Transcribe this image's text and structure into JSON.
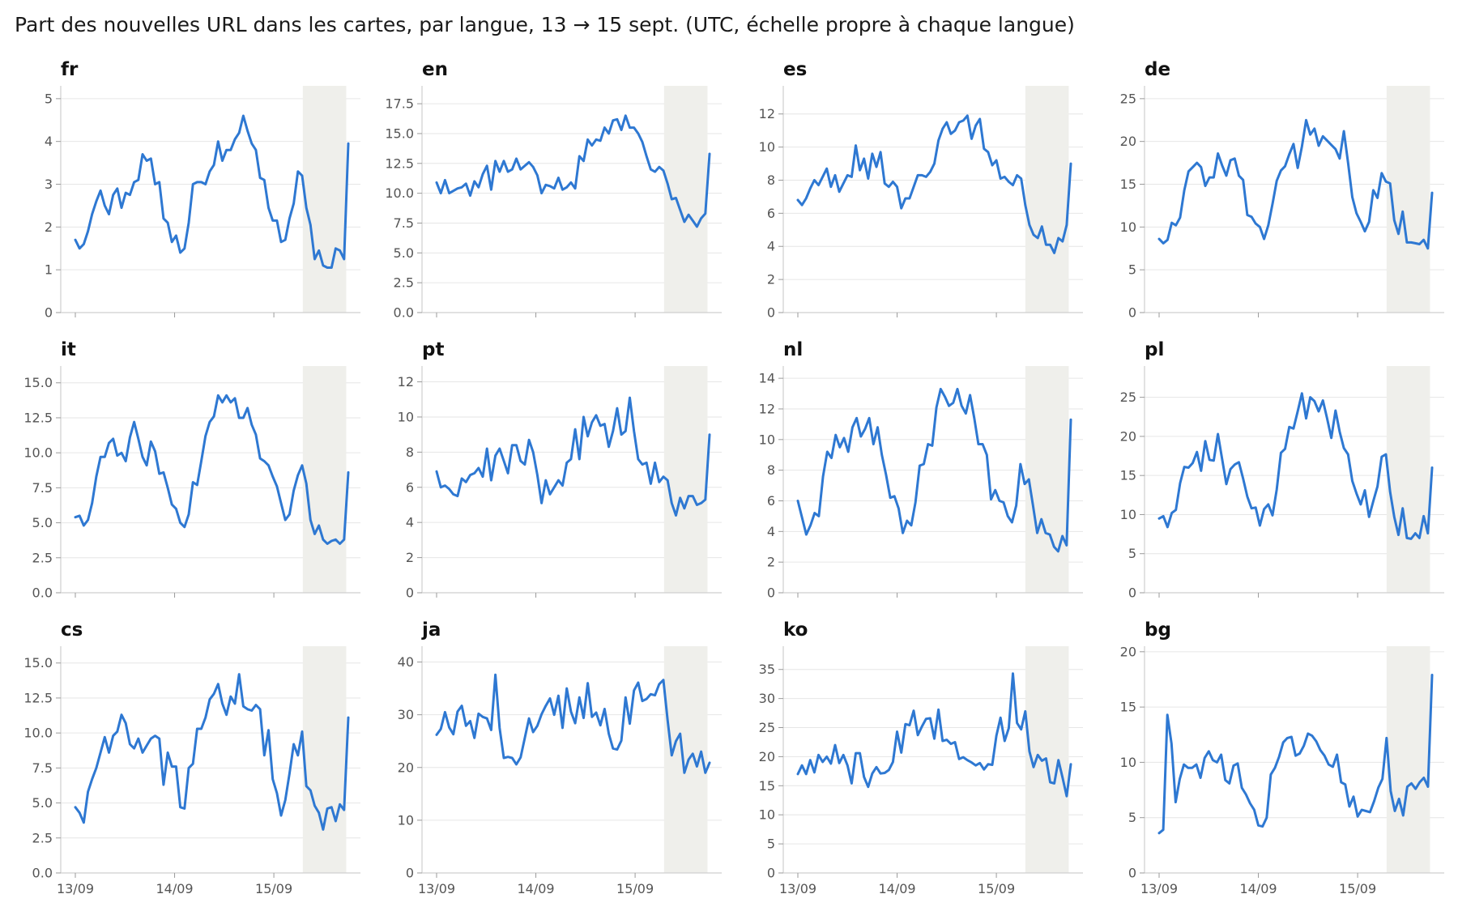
{
  "title": "Part des nouvelles URL dans les cartes, par langue, 13 → 15 sept. (UTC, échelle propre à chaque langue)",
  "colors": {
    "line": "#2e78d2",
    "band": "#efefeb",
    "grid": "#e6e6e6",
    "axis": "#cfcfcf"
  },
  "chart_data": {
    "type": "line",
    "layout": "grid-3x4",
    "x_unit": "hours since 13/09 00:00 UTC",
    "x_range": [
      0,
      66
    ],
    "x_ticks": [
      0,
      24,
      48
    ],
    "x_tick_labels": [
      "13/09",
      "14/09",
      "15/09"
    ],
    "shaded_x_range": [
      55,
      65.5
    ],
    "panels": [
      {
        "name": "fr",
        "ylim": [
          0,
          5.3
        ],
        "yticks": [
          "0",
          "1",
          "2",
          "3",
          "4",
          "5"
        ],
        "ytick_values": [
          0,
          1,
          2,
          3,
          4,
          5
        ],
        "values": [
          1.7,
          1.5,
          1.6,
          1.9,
          2.3,
          2.6,
          2.85,
          2.5,
          2.3,
          2.75,
          2.9,
          2.45,
          2.8,
          2.75,
          3.05,
          3.1,
          3.7,
          3.55,
          3.6,
          3.0,
          3.05,
          2.2,
          2.1,
          1.65,
          1.8,
          1.4,
          1.5,
          2.1,
          3.0,
          3.05,
          3.05,
          3.0,
          3.3,
          3.45,
          4.0,
          3.55,
          3.8,
          3.8,
          4.05,
          4.2,
          4.6,
          4.25,
          3.95,
          3.8,
          3.15,
          3.1,
          2.45,
          2.15,
          2.15,
          1.65,
          1.7,
          2.2,
          2.55,
          3.3,
          3.2,
          2.45,
          2.05,
          1.25,
          1.45,
          1.1,
          1.05,
          1.05,
          1.5,
          1.45,
          1.25,
          3.95
        ]
      },
      {
        "name": "en",
        "ylim": [
          0,
          19
        ],
        "yticks": [
          "0.0",
          "2.5",
          "5.0",
          "7.5",
          "10.0",
          "12.5",
          "15.0",
          "17.5"
        ],
        "ytick_values": [
          0,
          2.5,
          5,
          7.5,
          10,
          12.5,
          15,
          17.5
        ],
        "values": [
          10.9,
          10.0,
          11.1,
          10.0,
          10.2,
          10.4,
          10.5,
          10.8,
          9.8,
          11.0,
          10.5,
          11.6,
          12.3,
          10.3,
          12.7,
          11.8,
          12.7,
          11.8,
          12.0,
          12.9,
          12.0,
          12.3,
          12.6,
          12.2,
          11.5,
          10.0,
          10.7,
          10.6,
          10.4,
          11.3,
          10.3,
          10.5,
          10.9,
          10.4,
          13.1,
          12.7,
          14.5,
          14.0,
          14.5,
          14.4,
          15.5,
          15.0,
          16.1,
          16.2,
          15.3,
          16.5,
          15.5,
          15.5,
          15.0,
          14.3,
          13.1,
          12.0,
          11.8,
          12.2,
          11.9,
          10.8,
          9.5,
          9.6,
          8.6,
          7.6,
          8.2,
          7.7,
          7.2,
          7.9,
          8.3,
          13.3
        ]
      },
      {
        "name": "es",
        "ylim": [
          0,
          13.7
        ],
        "yticks": [
          "0",
          "2",
          "4",
          "6",
          "8",
          "10",
          "12"
        ],
        "ytick_values": [
          0,
          2,
          4,
          6,
          8,
          10,
          12
        ],
        "values": [
          6.8,
          6.5,
          6.9,
          7.5,
          8.0,
          7.7,
          8.2,
          8.7,
          7.6,
          8.3,
          7.3,
          7.8,
          8.3,
          8.2,
          10.1,
          8.6,
          9.3,
          8.1,
          9.6,
          8.8,
          9.7,
          7.8,
          7.6,
          7.9,
          7.6,
          6.3,
          6.9,
          6.9,
          7.6,
          8.3,
          8.3,
          8.2,
          8.5,
          9.0,
          10.4,
          11.1,
          11.5,
          10.8,
          11.0,
          11.5,
          11.6,
          11.9,
          10.5,
          11.3,
          11.7,
          9.9,
          9.7,
          8.9,
          9.2,
          8.1,
          8.2,
          7.9,
          7.7,
          8.3,
          8.1,
          6.5,
          5.3,
          4.7,
          4.5,
          5.2,
          4.1,
          4.1,
          3.6,
          4.5,
          4.3,
          5.3,
          9.0
        ]
      },
      {
        "name": "de",
        "ylim": [
          0,
          26.5
        ],
        "yticks": [
          "0",
          "5",
          "10",
          "15",
          "20",
          "25"
        ],
        "ytick_values": [
          0,
          5,
          10,
          15,
          20,
          25
        ],
        "values": [
          8.6,
          8.1,
          8.5,
          10.5,
          10.2,
          11.1,
          14.3,
          16.5,
          17.0,
          17.5,
          17.0,
          14.8,
          15.8,
          15.8,
          18.6,
          17.2,
          16.0,
          17.8,
          18.0,
          16.0,
          15.5,
          11.4,
          11.2,
          10.4,
          10.0,
          8.6,
          10.2,
          12.7,
          15.4,
          16.6,
          17.1,
          18.5,
          19.7,
          16.9,
          19.4,
          22.5,
          20.8,
          21.5,
          19.5,
          20.6,
          20.1,
          19.6,
          19.1,
          18.0,
          21.2,
          17.5,
          13.5,
          11.6,
          10.6,
          9.5,
          10.6,
          14.3,
          13.4,
          16.3,
          15.3,
          15.1,
          10.8,
          9.2,
          11.8,
          8.2,
          8.2,
          8.1,
          8.0,
          8.5,
          7.5,
          14.0
        ]
      },
      {
        "name": "it",
        "ylim": [
          0,
          16.2
        ],
        "yticks": [
          "0.0",
          "2.5",
          "5.0",
          "7.5",
          "10.0",
          "12.5",
          "15.0"
        ],
        "ytick_values": [
          0,
          2.5,
          5,
          7.5,
          10,
          12.5,
          15
        ],
        "values": [
          5.4,
          5.5,
          4.8,
          5.2,
          6.4,
          8.3,
          9.7,
          9.7,
          10.7,
          11.0,
          9.8,
          10.0,
          9.4,
          11.1,
          12.2,
          11.0,
          9.7,
          9.1,
          10.8,
          10.1,
          8.5,
          8.6,
          7.5,
          6.3,
          6.0,
          5.0,
          4.7,
          5.6,
          7.9,
          7.7,
          9.4,
          11.2,
          12.2,
          12.6,
          14.1,
          13.6,
          14.1,
          13.6,
          13.9,
          12.5,
          12.5,
          13.2,
          12.0,
          11.3,
          9.6,
          9.4,
          9.1,
          8.3,
          7.6,
          6.4,
          5.2,
          5.6,
          7.3,
          8.4,
          9.1,
          7.8,
          5.2,
          4.2,
          4.8,
          3.8,
          3.5,
          3.7,
          3.8,
          3.5,
          3.8,
          8.6
        ]
      },
      {
        "name": "pt",
        "ylim": [
          0,
          12.9
        ],
        "yticks": [
          "0",
          "2",
          "4",
          "6",
          "8",
          "10",
          "12"
        ],
        "ytick_values": [
          0,
          2,
          4,
          6,
          8,
          10,
          12
        ],
        "values": [
          6.9,
          6.0,
          6.1,
          5.9,
          5.6,
          5.5,
          6.5,
          6.3,
          6.7,
          6.8,
          7.1,
          6.6,
          8.2,
          6.4,
          7.8,
          8.2,
          7.5,
          6.8,
          8.4,
          8.4,
          7.5,
          7.3,
          8.7,
          8.0,
          6.7,
          5.1,
          6.4,
          5.6,
          6.0,
          6.4,
          6.1,
          7.4,
          7.6,
          9.3,
          7.6,
          10.0,
          8.9,
          9.7,
          10.1,
          9.5,
          9.6,
          8.3,
          9.2,
          10.5,
          9.0,
          9.2,
          11.1,
          9.2,
          7.6,
          7.3,
          7.4,
          6.2,
          7.4,
          6.3,
          6.6,
          6.4,
          5.1,
          4.4,
          5.4,
          4.8,
          5.5,
          5.5,
          5.0,
          5.1,
          5.3,
          9.0
        ]
      },
      {
        "name": "nl",
        "ylim": [
          0,
          14.8
        ],
        "yticks": [
          "0",
          "2",
          "4",
          "6",
          "8",
          "10",
          "12",
          "14"
        ],
        "ytick_values": [
          0,
          2,
          4,
          6,
          8,
          10,
          12,
          14
        ],
        "values": [
          6.0,
          4.9,
          3.8,
          4.4,
          5.2,
          5.0,
          7.6,
          9.2,
          8.8,
          10.3,
          9.5,
          10.1,
          9.2,
          10.8,
          11.4,
          10.2,
          10.7,
          11.4,
          9.7,
          10.8,
          9.0,
          7.7,
          6.2,
          6.3,
          5.5,
          3.9,
          4.7,
          4.4,
          5.9,
          8.3,
          8.4,
          9.7,
          9.6,
          12.1,
          13.3,
          12.8,
          12.2,
          12.4,
          13.3,
          12.2,
          11.7,
          12.9,
          11.4,
          9.7,
          9.7,
          9.0,
          6.1,
          6.7,
          6.0,
          5.9,
          5.0,
          4.6,
          5.7,
          8.4,
          7.1,
          7.4,
          5.7,
          3.9,
          4.8,
          3.9,
          3.8,
          3.0,
          2.7,
          3.7,
          3.1,
          11.3
        ]
      },
      {
        "name": "pl",
        "ylim": [
          0,
          29
        ],
        "yticks": [
          "0",
          "5",
          "10",
          "15",
          "20",
          "25"
        ],
        "ytick_values": [
          0,
          5,
          10,
          15,
          20,
          25
        ],
        "values": [
          9.5,
          9.8,
          8.4,
          10.2,
          10.6,
          14.0,
          16.1,
          16.0,
          16.6,
          18.0,
          15.6,
          19.4,
          17.0,
          16.9,
          20.3,
          17.1,
          13.9,
          15.8,
          16.4,
          16.7,
          14.6,
          12.3,
          10.8,
          10.9,
          8.6,
          10.7,
          11.3,
          9.9,
          13.2,
          17.9,
          18.4,
          21.2,
          21.0,
          23.2,
          25.5,
          22.3,
          25.0,
          24.5,
          23.2,
          24.6,
          22.3,
          19.8,
          23.3,
          20.6,
          18.5,
          17.7,
          14.3,
          12.7,
          11.3,
          13.1,
          9.7,
          11.7,
          13.6,
          17.4,
          17.7,
          12.9,
          9.7,
          7.4,
          10.8,
          7.0,
          6.9,
          7.6,
          7.0,
          9.8,
          7.6,
          16.0
        ]
      },
      {
        "name": "cs",
        "ylim": [
          0,
          16.2
        ],
        "yticks": [
          "0.0",
          "2.5",
          "5.0",
          "7.5",
          "10.0",
          "12.5",
          "15.0"
        ],
        "ytick_values": [
          0,
          2.5,
          5,
          7.5,
          10,
          12.5,
          15
        ],
        "values": [
          4.7,
          4.3,
          3.6,
          5.8,
          6.7,
          7.5,
          8.6,
          9.7,
          8.6,
          9.8,
          10.1,
          11.3,
          10.7,
          9.2,
          8.9,
          9.6,
          8.6,
          9.1,
          9.6,
          9.8,
          9.6,
          6.3,
          8.6,
          7.6,
          7.6,
          4.7,
          4.6,
          7.5,
          7.8,
          10.3,
          10.3,
          11.1,
          12.4,
          12.8,
          13.5,
          12.1,
          11.3,
          12.6,
          12.1,
          14.2,
          11.9,
          11.7,
          11.6,
          12.0,
          11.7,
          8.4,
          10.2,
          6.7,
          5.7,
          4.1,
          5.2,
          7.1,
          9.2,
          8.4,
          10.1,
          6.2,
          5.9,
          4.8,
          4.3,
          3.1,
          4.6,
          4.7,
          3.7,
          4.9,
          4.5,
          11.1
        ]
      },
      {
        "name": "ja",
        "ylim": [
          0,
          43
        ],
        "yticks": [
          "0",
          "10",
          "20",
          "30",
          "40"
        ],
        "ytick_values": [
          0,
          10,
          20,
          30,
          40
        ],
        "values": [
          26.2,
          27.3,
          30.5,
          27.6,
          26.3,
          30.6,
          31.7,
          27.9,
          28.8,
          25.6,
          30.2,
          29.6,
          29.3,
          27.1,
          37.6,
          27.5,
          21.8,
          22.0,
          21.8,
          20.6,
          21.9,
          25.6,
          29.3,
          26.7,
          27.9,
          30.1,
          31.7,
          33.1,
          30.0,
          33.6,
          27.5,
          35.0,
          30.6,
          28.4,
          33.3,
          29.4,
          36.0,
          29.6,
          30.4,
          28.0,
          31.1,
          26.4,
          23.6,
          23.4,
          25.1,
          33.3,
          28.3,
          34.6,
          36.1,
          32.6,
          33.0,
          33.9,
          33.7,
          35.8,
          36.6,
          29.0,
          22.3,
          25.0,
          26.4,
          19.0,
          21.5,
          22.6,
          20.2,
          23.0,
          19.0,
          20.9
        ]
      },
      {
        "name": "ko",
        "ylim": [
          0,
          39
        ],
        "yticks": [
          "0",
          "5",
          "10",
          "15",
          "20",
          "25",
          "30",
          "35"
        ],
        "ytick_values": [
          0,
          5,
          10,
          15,
          20,
          25,
          30,
          35
        ],
        "values": [
          17.0,
          18.5,
          17.0,
          19.4,
          17.3,
          20.3,
          19.1,
          20.0,
          18.8,
          22.0,
          18.9,
          20.3,
          18.5,
          15.4,
          20.6,
          20.6,
          16.5,
          14.8,
          17.1,
          18.2,
          17.1,
          17.2,
          17.7,
          19.1,
          24.3,
          20.7,
          25.6,
          25.4,
          27.9,
          23.7,
          25.2,
          26.5,
          26.6,
          23.1,
          28.1,
          22.7,
          22.9,
          22.2,
          22.5,
          19.6,
          19.9,
          19.4,
          19.0,
          18.5,
          18.9,
          17.8,
          18.7,
          18.6,
          23.6,
          26.7,
          22.7,
          24.9,
          34.3,
          25.8,
          24.7,
          27.8,
          20.9,
          18.2,
          20.3,
          19.3,
          19.7,
          15.6,
          15.4,
          19.4,
          16.4,
          13.2,
          18.7
        ]
      },
      {
        "name": "bg",
        "ylim": [
          0,
          20.5
        ],
        "yticks": [
          "0",
          "5",
          "10",
          "15",
          "20"
        ],
        "ytick_values": [
          0,
          5,
          10,
          15,
          20
        ],
        "values": [
          3.6,
          3.9,
          14.3,
          11.7,
          6.4,
          8.5,
          9.8,
          9.5,
          9.5,
          9.8,
          8.6,
          10.4,
          11.0,
          10.2,
          10.0,
          10.7,
          8.4,
          8.1,
          9.7,
          9.9,
          7.7,
          7.1,
          6.3,
          5.7,
          4.3,
          4.2,
          5.0,
          8.9,
          9.5,
          10.5,
          11.8,
          12.2,
          12.3,
          10.6,
          10.8,
          11.5,
          12.6,
          12.4,
          11.9,
          11.1,
          10.6,
          9.8,
          9.6,
          10.7,
          8.2,
          8.0,
          6.0,
          6.9,
          5.1,
          5.7,
          5.6,
          5.5,
          6.5,
          7.7,
          8.5,
          12.2,
          7.4,
          5.6,
          6.7,
          5.2,
          7.8,
          8.1,
          7.6,
          8.2,
          8.6,
          7.8,
          17.9
        ]
      }
    ]
  }
}
